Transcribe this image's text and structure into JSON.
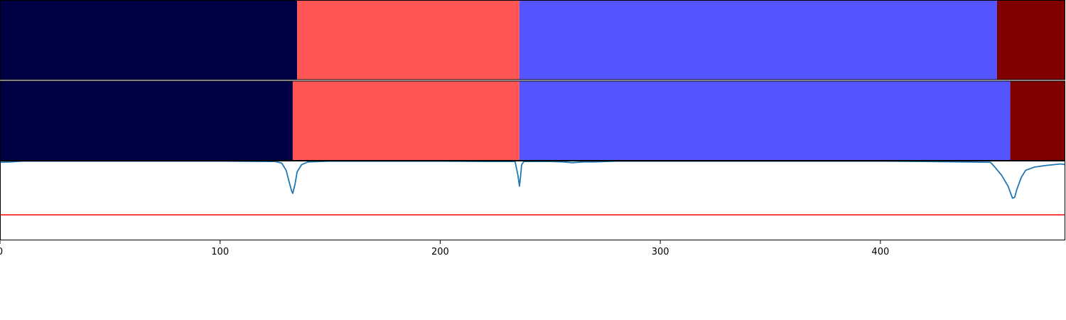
{
  "chart_data": {
    "type": "area",
    "title": "",
    "xlabel": "",
    "ylabel": "",
    "xlim": [
      0,
      484
    ],
    "x_ticks": [
      0,
      100,
      200,
      300,
      400
    ],
    "x_tick_labels": [
      "0",
      "100",
      "200",
      "300",
      "400"
    ],
    "grid": false,
    "segmentation_rows": [
      {
        "name": "",
        "segments": [
          {
            "start": 0,
            "end": 135,
            "color": "#000044"
          },
          {
            "start": 135,
            "end": 236,
            "color": "#ff5555"
          },
          {
            "start": 236,
            "end": 453,
            "color": "#5555ff"
          },
          {
            "start": 453,
            "end": 484,
            "color": "#800000"
          }
        ]
      },
      {
        "name": "",
        "segments": [
          {
            "start": 0,
            "end": 133,
            "color": "#000044"
          },
          {
            "start": 133,
            "end": 236,
            "color": "#ff5555"
          },
          {
            "start": 236,
            "end": 459,
            "color": "#5555ff"
          },
          {
            "start": 459,
            "end": 484,
            "color": "#800000"
          }
        ]
      }
    ],
    "signal": {
      "color": "#1f77b4",
      "ylim": [
        0,
        1
      ],
      "x": [
        0,
        5,
        10,
        30,
        60,
        100,
        125,
        128,
        130,
        131.5,
        132.5,
        133,
        134,
        135,
        137,
        140,
        150,
        200,
        220,
        234,
        235.3,
        236,
        236.5,
        237,
        238,
        250,
        256,
        260,
        265,
        270,
        280,
        300,
        400,
        420,
        450,
        452,
        455,
        458,
        460,
        461,
        462,
        464,
        466,
        470,
        475,
        482,
        484
      ],
      "y": [
        0.98,
        0.985,
        0.995,
        0.995,
        0.995,
        0.995,
        0.99,
        0.97,
        0.88,
        0.72,
        0.62,
        0.59,
        0.7,
        0.86,
        0.95,
        0.985,
        0.995,
        0.995,
        0.99,
        0.99,
        0.82,
        0.68,
        0.8,
        0.95,
        0.99,
        0.99,
        0.985,
        0.975,
        0.985,
        0.985,
        0.995,
        0.995,
        0.995,
        0.99,
        0.98,
        0.92,
        0.82,
        0.68,
        0.53,
        0.54,
        0.64,
        0.79,
        0.88,
        0.92,
        0.94,
        0.96,
        0.95
      ]
    },
    "threshold": {
      "y": 0.32,
      "color": "#ff0000"
    }
  }
}
